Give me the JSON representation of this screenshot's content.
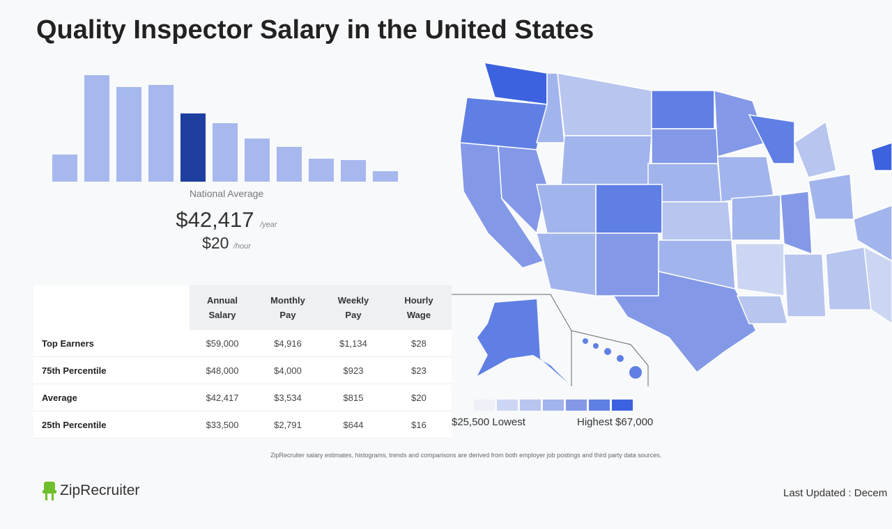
{
  "title": "Quality Inspector Salary in the United States",
  "chart_data": [
    {
      "type": "bar",
      "subtype": "histogram",
      "values": [
        39,
        153,
        136,
        139,
        98,
        84,
        62,
        50,
        33,
        31,
        15
      ],
      "highlight_index": 4,
      "bar_color": "#a6b8ee",
      "highlight_color": "#1e3fa0",
      "axes": "none",
      "grid": false
    },
    {
      "type": "choropleth",
      "legend": {
        "colors": [
          "#eef0f7",
          "#ccd6f2",
          "#b7c5ef",
          "#a2b4ec",
          "#8399e8",
          "#5f7fe4",
          "#3c62df"
        ],
        "low_label": "$25,500 Lowest",
        "high_label": "Highest $67,000"
      }
    }
  ],
  "national": {
    "label": "National Average",
    "annual": "$42,417",
    "annual_unit": "/year",
    "hourly": "$20",
    "hourly_unit": "/hour"
  },
  "table": {
    "headers": [
      [
        "Annual",
        "Salary"
      ],
      [
        "Monthly",
        "Pay"
      ],
      [
        "Weekly",
        "Pay"
      ],
      [
        "Hourly",
        "Wage"
      ]
    ],
    "rows": [
      {
        "label": "Top Earners",
        "cells": [
          "$59,000",
          "$4,916",
          "$1,134",
          "$28"
        ]
      },
      {
        "label": "75th Percentile",
        "cells": [
          "$48,000",
          "$4,000",
          "$923",
          "$23"
        ]
      },
      {
        "label": "Average",
        "cells": [
          "$42,417",
          "$3,534",
          "$815",
          "$20"
        ]
      },
      {
        "label": "25th Percentile",
        "cells": [
          "$33,500",
          "$2,791",
          "$644",
          "$16"
        ]
      }
    ]
  },
  "note": "ZipRecruiter salary estimates, histograms, trends and comparisons are derived from both employer job postings and third party data sources.",
  "brand": "ZipRecruiter",
  "last_updated": "Last Updated : Decem"
}
